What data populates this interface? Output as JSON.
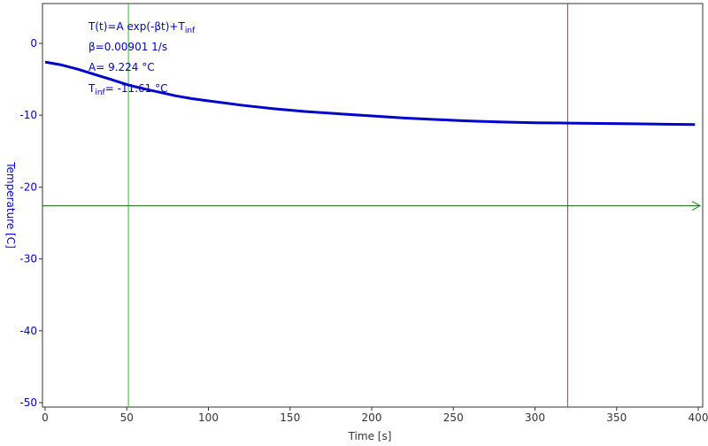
{
  "chart_data": {
    "type": "line",
    "xlabel": "Time [s]",
    "ylabel": "Temperature [C]",
    "xlim": [
      0,
      400
    ],
    "ylim": [
      -50,
      5
    ],
    "x_ticks": [
      0,
      50,
      100,
      150,
      200,
      250,
      300,
      350,
      400
    ],
    "y_ticks": [
      0,
      -10,
      -20,
      -30,
      -40,
      -50
    ],
    "grid": false,
    "annotation": {
      "equation_main": "T(t)=A exp(-βt)+T",
      "equation_sub": "inf",
      "beta_line": "β=0.00901 1/s",
      "a_line": "A= 9.224 °C",
      "tinf_main": "T",
      "tinf_sub": "inf",
      "tinf_value": "= -11.61 °C"
    },
    "markers": {
      "vertical_green_x": 51,
      "vertical_red_x": 320,
      "horizontal_green_y": -22.6
    },
    "series": [
      {
        "x": [
          0,
          10,
          20,
          30,
          40,
          51,
          60,
          70,
          80,
          90,
          100,
          120,
          140,
          160,
          180,
          200,
          220,
          240,
          260,
          280,
          300,
          320,
          340,
          360,
          380,
          398
        ],
        "y": [
          -2.6,
          -3.0,
          -3.6,
          -4.3,
          -5.0,
          -5.8,
          -6.3,
          -6.8,
          -7.3,
          -7.7,
          -8.0,
          -8.6,
          -9.1,
          -9.5,
          -9.8,
          -10.1,
          -10.4,
          -10.6,
          -10.8,
          -10.95,
          -11.05,
          -11.1,
          -11.15,
          -11.2,
          -11.25,
          -11.3
        ]
      }
    ],
    "colors": {
      "series": "#0000cc",
      "axis_text": "#0000cc",
      "green": "#22c022",
      "dark_green": "#1a7a1a",
      "red": "#dd2222"
    }
  }
}
